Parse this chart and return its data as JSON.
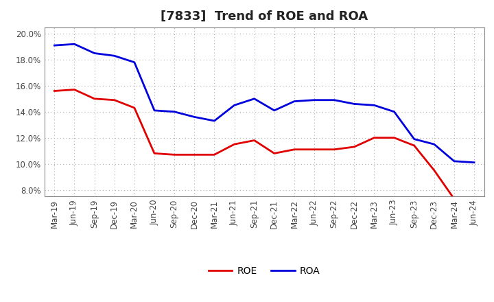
{
  "title": "[7833]  Trend of ROE and ROA",
  "x_labels": [
    "Mar-19",
    "Jun-19",
    "Sep-19",
    "Dec-19",
    "Mar-20",
    "Jun-20",
    "Sep-20",
    "Dec-20",
    "Mar-21",
    "Jun-21",
    "Sep-21",
    "Dec-21",
    "Mar-22",
    "Jun-22",
    "Sep-22",
    "Dec-22",
    "Mar-23",
    "Jun-23",
    "Sep-23",
    "Dec-23",
    "Mar-24",
    "Jun-24"
  ],
  "roe": [
    15.6,
    15.7,
    15.0,
    14.9,
    14.3,
    10.8,
    10.7,
    10.7,
    10.7,
    11.5,
    11.8,
    10.8,
    11.1,
    11.1,
    11.1,
    11.3,
    12.0,
    12.0,
    11.4,
    9.5,
    7.3,
    null
  ],
  "roa": [
    19.1,
    19.2,
    18.5,
    18.3,
    17.8,
    14.1,
    14.0,
    13.6,
    13.3,
    14.5,
    15.0,
    14.1,
    14.8,
    14.9,
    14.9,
    14.6,
    14.5,
    14.0,
    11.9,
    11.5,
    10.2,
    10.1
  ],
  "roe_color": "#e00000",
  "roa_color": "#0000dd",
  "background_color": "#ffffff",
  "plot_bg_color": "#ffffff",
  "grid_color": "#aaaaaa",
  "ylim": [
    7.5,
    20.5
  ],
  "yticks": [
    8.0,
    10.0,
    12.0,
    14.0,
    16.0,
    18.0,
    20.0
  ],
  "title_fontsize": 13,
  "axis_fontsize": 8.5,
  "legend_fontsize": 10,
  "line_width": 2.0
}
